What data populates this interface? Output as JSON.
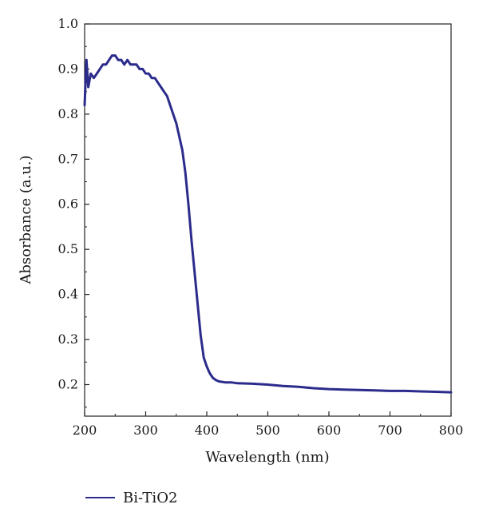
{
  "chart_data": {
    "type": "line",
    "xlabel": "Wavelength (nm)",
    "ylabel": "Absorbance (a.u.)",
    "xlim": [
      200,
      800
    ],
    "ylim": [
      0.13,
      1.0
    ],
    "xticks": [
      200,
      300,
      400,
      500,
      600,
      700,
      800
    ],
    "xtick_labels": [
      "200",
      "300",
      "400",
      "500",
      "600",
      "700",
      "800"
    ],
    "yticks": [
      0.2,
      0.3,
      0.4,
      0.5,
      0.6,
      0.7,
      0.8,
      0.9,
      1.0
    ],
    "ytick_labels": [
      "0.2",
      "0.3",
      "0.4",
      "0.5",
      "0.6",
      "0.7",
      "0.8",
      "0.9",
      "1.0"
    ],
    "grid": false,
    "legend": {
      "placement": "bottom-left",
      "entries": [
        "Bi-TiO2"
      ]
    },
    "series": [
      {
        "name": "Bi-TiO2",
        "color": "#2b2b8c",
        "x": [
          200,
          203,
          206,
          210,
          215,
          220,
          225,
          230,
          235,
          240,
          245,
          250,
          255,
          260,
          265,
          270,
          275,
          280,
          285,
          290,
          295,
          300,
          305,
          310,
          315,
          320,
          325,
          330,
          335,
          340,
          345,
          350,
          355,
          360,
          365,
          370,
          375,
          380,
          385,
          390,
          395,
          400,
          405,
          410,
          415,
          420,
          430,
          440,
          450,
          475,
          500,
          525,
          550,
          575,
          600,
          625,
          650,
          675,
          700,
          725,
          750,
          775,
          800
        ],
        "y": [
          0.82,
          0.92,
          0.86,
          0.89,
          0.88,
          0.89,
          0.9,
          0.91,
          0.91,
          0.92,
          0.93,
          0.93,
          0.92,
          0.92,
          0.91,
          0.92,
          0.91,
          0.91,
          0.91,
          0.9,
          0.9,
          0.89,
          0.89,
          0.88,
          0.88,
          0.87,
          0.86,
          0.85,
          0.84,
          0.82,
          0.8,
          0.78,
          0.75,
          0.72,
          0.67,
          0.6,
          0.52,
          0.45,
          0.38,
          0.31,
          0.26,
          0.24,
          0.225,
          0.215,
          0.21,
          0.207,
          0.205,
          0.205,
          0.203,
          0.202,
          0.2,
          0.197,
          0.195,
          0.192,
          0.19,
          0.189,
          0.188,
          0.187,
          0.186,
          0.186,
          0.185,
          0.184,
          0.183
        ]
      }
    ]
  }
}
